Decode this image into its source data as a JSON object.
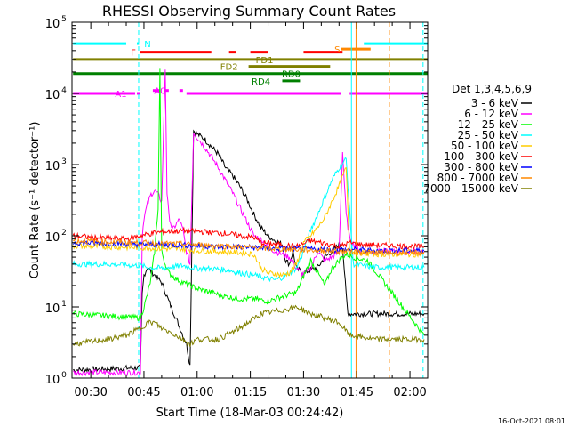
{
  "chart_data": {
    "type": "line",
    "title": "RHESSI Observing Summary Count Rates",
    "xlabel": "Start Time (18-Mar-03 00:24:42)",
    "ylabel": "Count Rate (s⁻¹ detector⁻¹)",
    "x_ticks": [
      "00:30",
      "00:45",
      "01:00",
      "01:15",
      "01:30",
      "01:45",
      "02:00"
    ],
    "x_tick_minutes": [
      30,
      45,
      60,
      75,
      90,
      105,
      120
    ],
    "xlim_minutes": [
      24.7,
      125
    ],
    "y_scale": "log",
    "ylim": [
      1,
      100000
    ],
    "y_ticks": [
      {
        "value": 1,
        "mantissa": "10",
        "exp": "0"
      },
      {
        "value": 10,
        "mantissa": "10",
        "exp": "1"
      },
      {
        "value": 100,
        "mantissa": "10",
        "exp": "2"
      },
      {
        "value": 1000,
        "mantissa": "10",
        "exp": "3"
      },
      {
        "value": 10000,
        "mantissa": "10",
        "exp": "4"
      },
      {
        "value": 100000,
        "mantissa": "10",
        "exp": "5"
      }
    ],
    "legend": {
      "title": "Det 1,3,4,5,6,9",
      "placement": "right"
    },
    "series": [
      {
        "name": "3 - 6 keV",
        "color": "#000000",
        "points": [
          [
            25,
            1.3
          ],
          [
            44,
            1.4
          ],
          [
            44.5,
            15
          ],
          [
            45,
            28
          ],
          [
            46,
            36
          ],
          [
            48,
            28
          ],
          [
            50,
            22
          ],
          [
            52,
            12
          ],
          [
            54,
            7
          ],
          [
            56,
            4
          ],
          [
            57,
            3
          ],
          [
            58,
            1.5
          ],
          [
            59,
            3000
          ],
          [
            60,
            2700
          ],
          [
            62,
            2300
          ],
          [
            64,
            1800
          ],
          [
            66,
            1400
          ],
          [
            68,
            900
          ],
          [
            70,
            700
          ],
          [
            72,
            500
          ],
          [
            74,
            330
          ],
          [
            76,
            200
          ],
          [
            78,
            130
          ],
          [
            80,
            100
          ],
          [
            82,
            85
          ],
          [
            84,
            75
          ],
          [
            85,
            45
          ],
          [
            86,
            40
          ],
          [
            87,
            60
          ],
          [
            88,
            35
          ],
          [
            90,
            30
          ],
          [
            92,
            33
          ],
          [
            94,
            36
          ],
          [
            96,
            50
          ],
          [
            98,
            60
          ],
          [
            100,
            75
          ],
          [
            101,
            70
          ],
          [
            102,
            15
          ],
          [
            102.5,
            8
          ],
          [
            124,
            8
          ]
        ]
      },
      {
        "name": "6 - 12 keV",
        "color": "#ff00ff",
        "points": [
          [
            25,
            1.2
          ],
          [
            44,
            1.2
          ],
          [
            44.5,
            100
          ],
          [
            45,
            180
          ],
          [
            46,
            280
          ],
          [
            47,
            380
          ],
          [
            48,
            430
          ],
          [
            49,
            380
          ],
          [
            50,
            300
          ],
          [
            51,
            22000
          ],
          [
            51.5,
            400
          ],
          [
            52,
            200
          ],
          [
            53,
            120
          ],
          [
            55,
            170
          ],
          [
            56,
            120
          ],
          [
            57,
            60
          ],
          [
            58,
            40
          ],
          [
            59,
            2800
          ],
          [
            60,
            2400
          ],
          [
            62,
            1800
          ],
          [
            64,
            1300
          ],
          [
            66,
            900
          ],
          [
            68,
            600
          ],
          [
            70,
            400
          ],
          [
            72,
            250
          ],
          [
            74,
            160
          ],
          [
            76,
            100
          ],
          [
            78,
            90
          ],
          [
            80,
            70
          ],
          [
            82,
            60
          ],
          [
            84,
            55
          ],
          [
            86,
            50
          ],
          [
            88,
            35
          ],
          [
            90,
            28
          ],
          [
            92,
            35
          ],
          [
            94,
            60
          ],
          [
            96,
            45
          ],
          [
            98,
            50
          ],
          [
            100,
            60
          ],
          [
            101,
            1500
          ],
          [
            102,
            200
          ],
          [
            103,
            90
          ],
          [
            106,
            60
          ],
          [
            124,
            60
          ]
        ]
      },
      {
        "name": "12 - 25 keV",
        "color": "#00ff00",
        "points": [
          [
            25,
            8
          ],
          [
            44,
            7
          ],
          [
            45,
            10
          ],
          [
            46,
            15
          ],
          [
            47,
            25
          ],
          [
            48,
            60
          ],
          [
            49,
            250
          ],
          [
            49.5,
            22000
          ],
          [
            50,
            60
          ],
          [
            51,
            40
          ],
          [
            52,
            30
          ],
          [
            54,
            25
          ],
          [
            56,
            22
          ],
          [
            58,
            20
          ],
          [
            60,
            18
          ],
          [
            64,
            16
          ],
          [
            68,
            14
          ],
          [
            72,
            13
          ],
          [
            76,
            13
          ],
          [
            80,
            12
          ],
          [
            84,
            14
          ],
          [
            88,
            16
          ],
          [
            92,
            45
          ],
          [
            94,
            30
          ],
          [
            96,
            20
          ],
          [
            98,
            35
          ],
          [
            100,
            45
          ],
          [
            102,
            55
          ],
          [
            104,
            50
          ],
          [
            108,
            45
          ],
          [
            124,
            4
          ]
        ]
      },
      {
        "name": "25 - 50 keV",
        "color": "#00ffff",
        "points": [
          [
            25,
            40
          ],
          [
            35,
            40
          ],
          [
            44,
            38
          ],
          [
            46,
            36
          ],
          [
            50,
            35
          ],
          [
            56,
            38
          ],
          [
            60,
            35
          ],
          [
            66,
            34
          ],
          [
            70,
            32
          ],
          [
            72,
            30
          ],
          [
            76,
            28
          ],
          [
            80,
            25
          ],
          [
            82,
            24
          ],
          [
            84,
            26
          ],
          [
            86,
            30
          ],
          [
            88,
            35
          ],
          [
            90,
            60
          ],
          [
            92,
            120
          ],
          [
            94,
            200
          ],
          [
            96,
            350
          ],
          [
            98,
            600
          ],
          [
            100,
            900
          ],
          [
            102,
            1200
          ],
          [
            104,
            40
          ],
          [
            110,
            36
          ],
          [
            124,
            36
          ]
        ]
      },
      {
        "name": "50 - 100 keV",
        "color": "#ffcc00",
        "points": [
          [
            25,
            72
          ],
          [
            35,
            70
          ],
          [
            44,
            68
          ],
          [
            50,
            66
          ],
          [
            56,
            65
          ],
          [
            60,
            62
          ],
          [
            66,
            60
          ],
          [
            72,
            58
          ],
          [
            76,
            55
          ],
          [
            78,
            35
          ],
          [
            80,
            30
          ],
          [
            84,
            28
          ],
          [
            86,
            30
          ],
          [
            88,
            40
          ],
          [
            90,
            80
          ],
          [
            92,
            100
          ],
          [
            94,
            130
          ],
          [
            96,
            180
          ],
          [
            98,
            300
          ],
          [
            100,
            500
          ],
          [
            102,
            900
          ],
          [
            103,
            60
          ],
          [
            110,
            55
          ],
          [
            124,
            55
          ]
        ]
      },
      {
        "name": "100 - 300 keV",
        "color": "#ff0000",
        "points": [
          [
            25,
            100
          ],
          [
            30,
            95
          ],
          [
            35,
            92
          ],
          [
            40,
            90
          ],
          [
            44,
            100
          ],
          [
            48,
            110
          ],
          [
            52,
            115
          ],
          [
            56,
            118
          ],
          [
            60,
            115
          ],
          [
            64,
            112
          ],
          [
            68,
            108
          ],
          [
            72,
            100
          ],
          [
            76,
            95
          ],
          [
            78,
            80
          ],
          [
            80,
            78
          ],
          [
            84,
            75
          ],
          [
            88,
            70
          ],
          [
            92,
            85
          ],
          [
            96,
            78
          ],
          [
            100,
            70
          ],
          [
            103,
            80
          ],
          [
            106,
            75
          ],
          [
            124,
            70
          ]
        ]
      },
      {
        "name": "300 - 800 keV",
        "color": "#0000ff",
        "points": [
          [
            25,
            80
          ],
          [
            35,
            78
          ],
          [
            44,
            76
          ],
          [
            50,
            75
          ],
          [
            56,
            74
          ],
          [
            60,
            72
          ],
          [
            66,
            70
          ],
          [
            72,
            70
          ],
          [
            76,
            68
          ],
          [
            80,
            67
          ],
          [
            84,
            66
          ],
          [
            88,
            65
          ],
          [
            92,
            65
          ],
          [
            96,
            64
          ],
          [
            100,
            63
          ],
          [
            103,
            64
          ],
          [
            110,
            62
          ],
          [
            124,
            62
          ]
        ]
      },
      {
        "name": "800 - 7000 keV",
        "color": "#ff8800",
        "points": [
          [
            25,
            85
          ],
          [
            35,
            82
          ],
          [
            44,
            80
          ],
          [
            50,
            78
          ],
          [
            56,
            76
          ],
          [
            60,
            75
          ],
          [
            66,
            72
          ],
          [
            72,
            70
          ],
          [
            76,
            68
          ],
          [
            80,
            66
          ],
          [
            84,
            65
          ],
          [
            88,
            64
          ],
          [
            92,
            63
          ],
          [
            96,
            62
          ],
          [
            100,
            60
          ],
          [
            103,
            60
          ],
          [
            110,
            58
          ],
          [
            124,
            58
          ]
        ]
      },
      {
        "name": "7000 - 15000 keV",
        "color": "#808000",
        "points": [
          [
            25,
            3
          ],
          [
            35,
            3.5
          ],
          [
            40,
            4
          ],
          [
            44,
            5
          ],
          [
            46,
            6
          ],
          [
            48,
            6
          ],
          [
            50,
            5
          ],
          [
            52,
            4.5
          ],
          [
            54,
            4
          ],
          [
            56,
            3.5
          ],
          [
            58,
            3
          ],
          [
            60,
            3.5
          ],
          [
            66,
            3.5
          ],
          [
            72,
            5
          ],
          [
            78,
            8
          ],
          [
            84,
            9
          ],
          [
            88,
            10
          ],
          [
            90,
            9
          ],
          [
            92,
            8
          ],
          [
            96,
            7
          ],
          [
            100,
            6
          ],
          [
            103,
            4
          ],
          [
            110,
            3.5
          ],
          [
            124,
            3.5
          ]
        ]
      }
    ],
    "flags": [
      {
        "label": "N",
        "color": "#00ffff",
        "level": 50000,
        "segments": [
          [
            25,
            40
          ],
          [
            43,
            43.6
          ],
          [
            107,
            125
          ]
        ],
        "label_at": 46
      },
      {
        "label": "S",
        "color": "#ff8800",
        "level": 42000,
        "segments": [
          [
            100.6,
            108.9
          ]
        ],
        "label_at": 99.5
      },
      {
        "label": "F",
        "color": "#ff0000",
        "level": 38000,
        "segments": [
          [
            44,
            64
          ],
          [
            69,
            71
          ],
          [
            75,
            80
          ],
          [
            90,
            101
          ]
        ],
        "label_at": 42
      },
      {
        "label": "FD1",
        "color": "#808000",
        "level": 30000,
        "segments": [
          [
            25,
            125
          ]
        ],
        "label_at": 79
      },
      {
        "label": "FD2",
        "color": "#808000",
        "level": 24000,
        "segments": [
          [
            74.5,
            97.5
          ]
        ],
        "label_at": 69
      },
      {
        "label": "RD0",
        "color": "#008000",
        "level": 19000,
        "segments": [
          [
            25,
            125
          ]
        ],
        "label_at": 86.5
      },
      {
        "label": "RD4",
        "color": "#008000",
        "level": 15000,
        "segments": [
          [
            84,
            89
          ]
        ],
        "label_at": 78
      },
      {
        "label": "A0",
        "color": "#ff00ff",
        "level": 11000,
        "segments": [
          [
            47.5,
            49.5
          ],
          [
            51,
            52
          ],
          [
            55,
            56
          ]
        ],
        "label_at": 49.5
      },
      {
        "label": "A1",
        "color": "#ff00ff",
        "level": 10000,
        "segments": [
          [
            25,
            42.5
          ],
          [
            43,
            44
          ],
          [
            57,
            100.5
          ],
          [
            103,
            125
          ]
        ],
        "label_at": 38.5
      }
    ],
    "vertical_markers": [
      {
        "minutes": 43.5,
        "color": "#00ffff",
        "style": "dashed"
      },
      {
        "minutes": 103.5,
        "color": "#00ffff",
        "style": "solid"
      },
      {
        "minutes": 104.8,
        "color": "#ff8800",
        "style": "solid"
      },
      {
        "minutes": 114.2,
        "color": "#ff8800",
        "style": "dashed"
      },
      {
        "minutes": 123.7,
        "color": "#00ffff",
        "style": "dashed"
      }
    ]
  },
  "footer": {
    "timestamp": "16-Oct-2021 08:01"
  }
}
